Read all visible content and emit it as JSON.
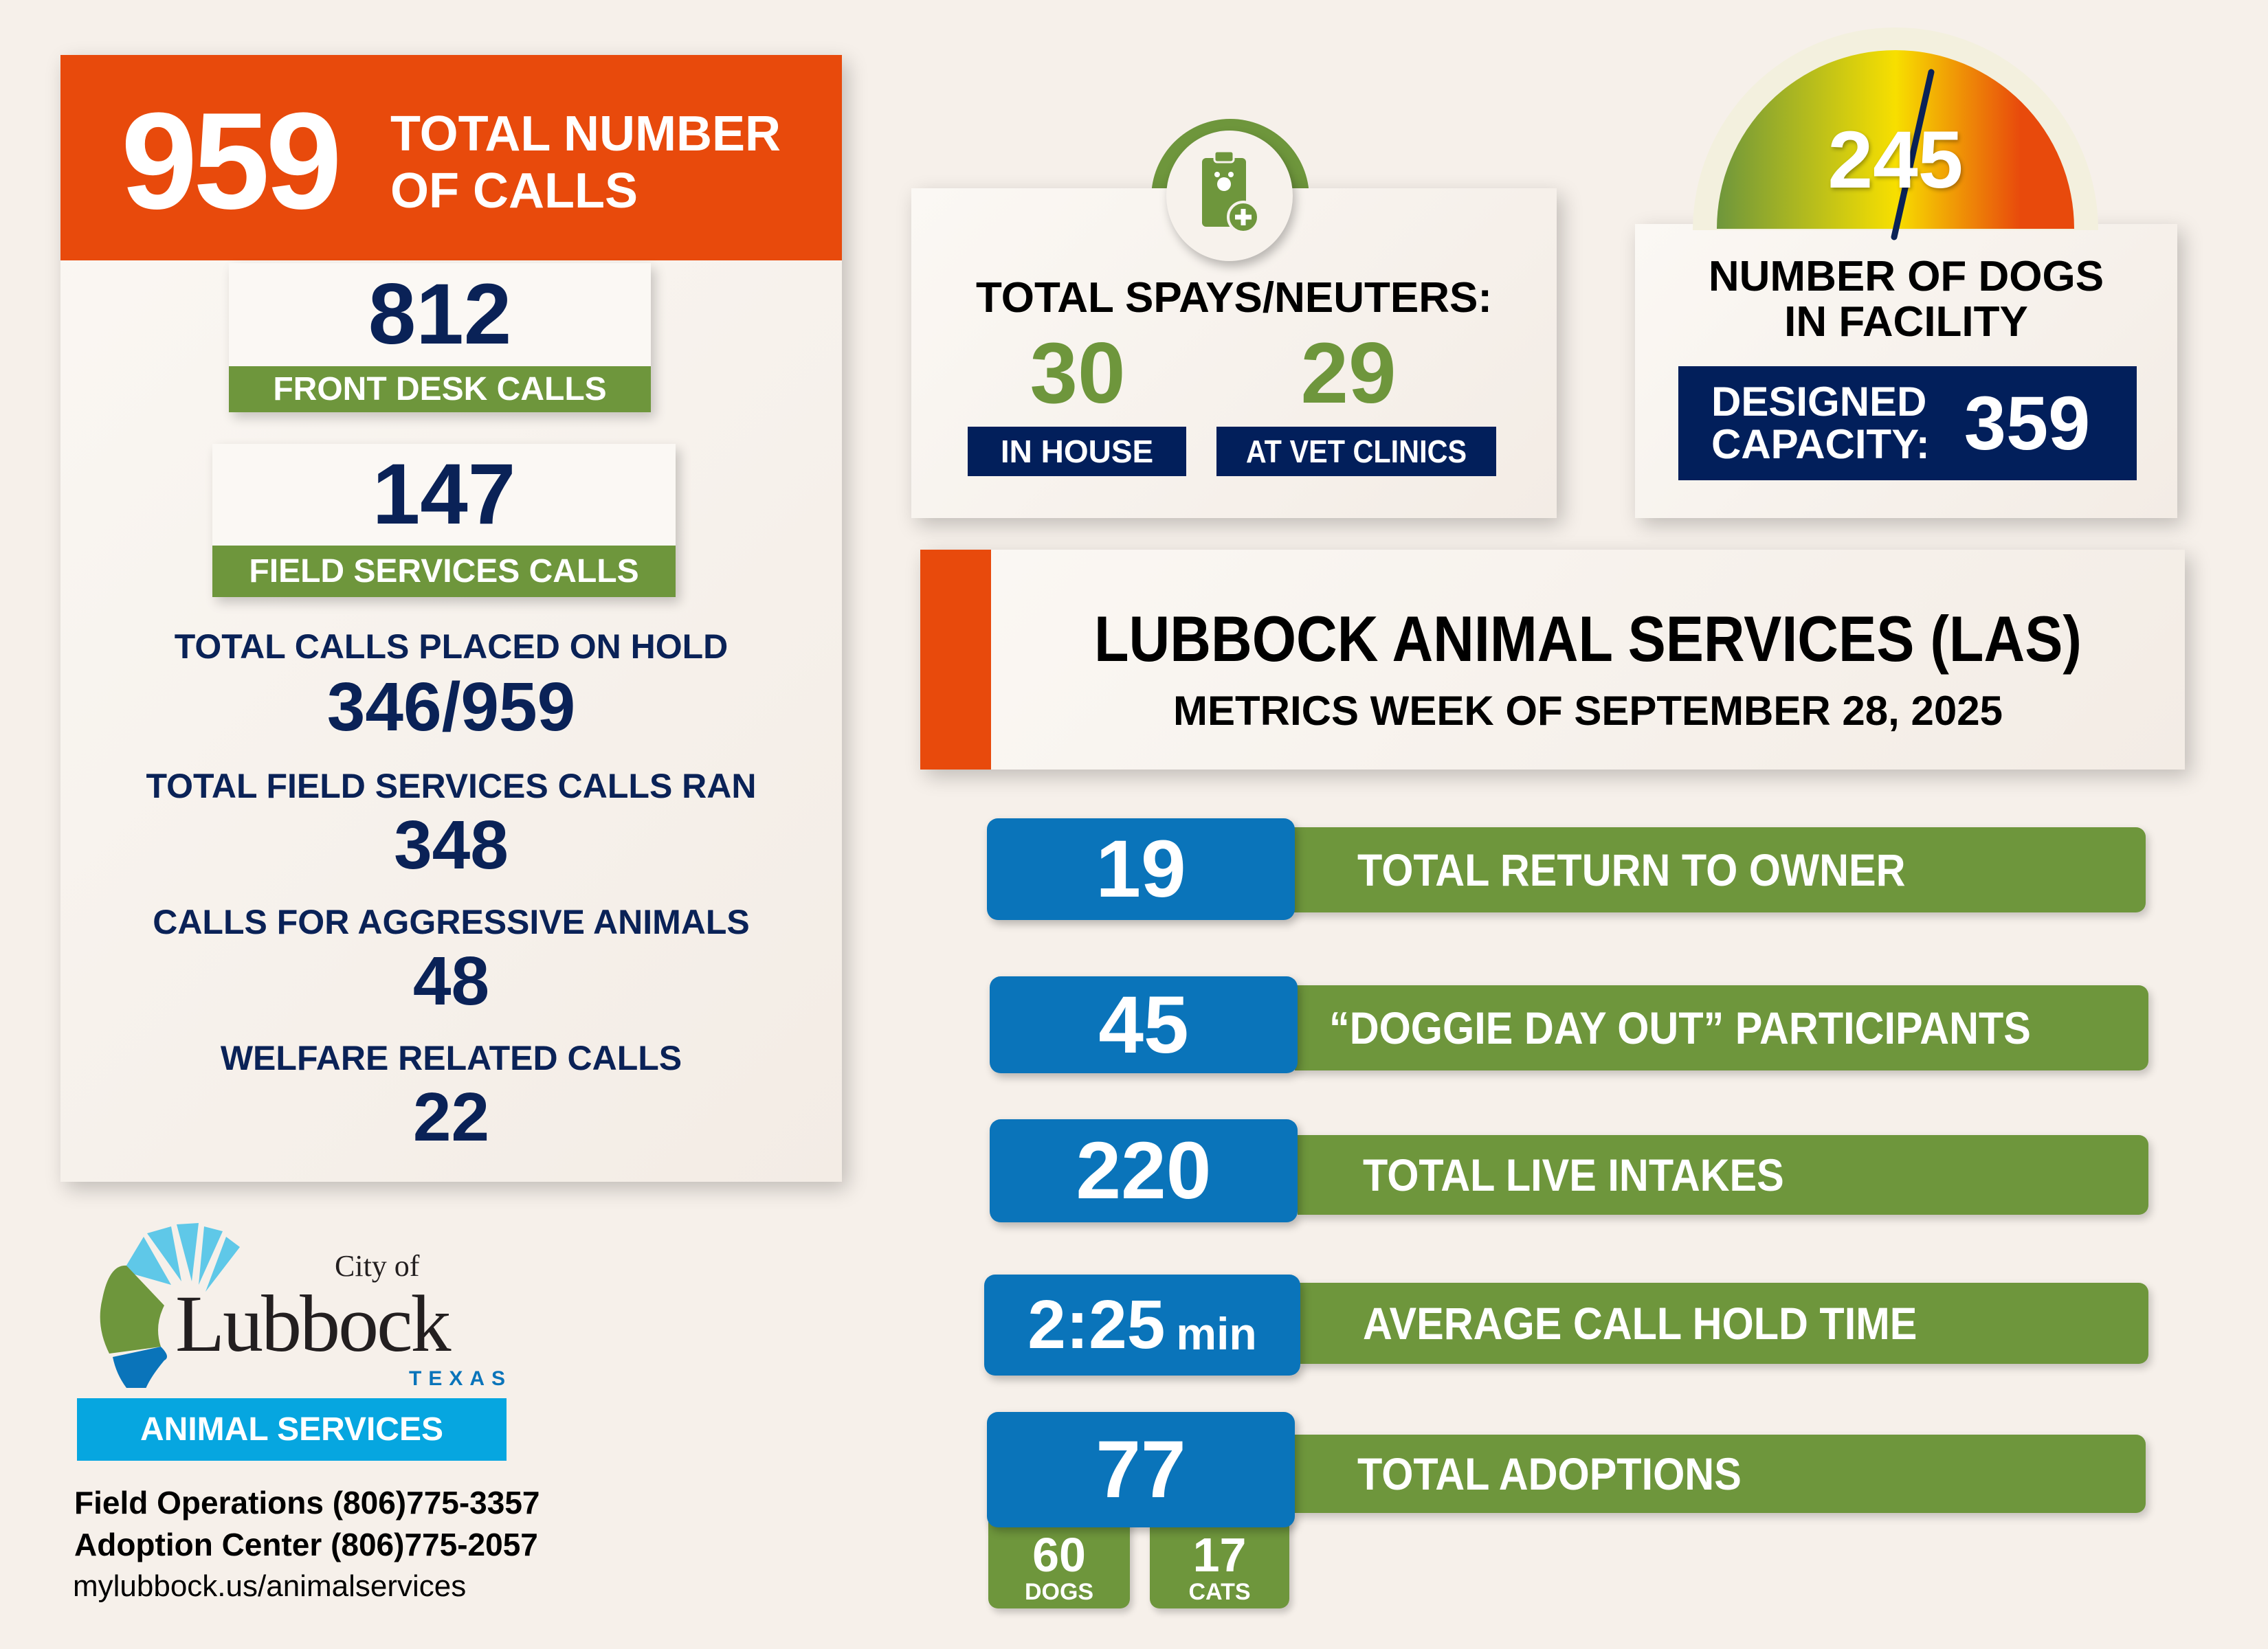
{
  "total_calls": {
    "value": "959",
    "label_line1": "TOTAL NUMBER",
    "label_line2": "OF CALLS"
  },
  "front_desk": {
    "value": "812",
    "label": "FRONT DESK CALLS"
  },
  "field_services": {
    "value": "147",
    "label": "FIELD SERVICES CALLS"
  },
  "left_stats": [
    {
      "label": "TOTAL CALLS PLACED ON HOLD",
      "value": "346/959"
    },
    {
      "label": "TOTAL FIELD SERVICES CALLS RAN",
      "value": "348"
    },
    {
      "label": "CALLS FOR AGGRESSIVE ANIMALS",
      "value": "48"
    },
    {
      "label": "WELFARE RELATED CALLS",
      "value": "22"
    }
  ],
  "spays": {
    "title": "TOTAL SPAYS/NEUTERS:",
    "in_house": {
      "value": "30",
      "label": "IN HOUSE"
    },
    "vet": {
      "value": "29",
      "label": "AT VET CLINICS"
    },
    "icon": "clipboard-paw-plus-icon"
  },
  "dogs": {
    "value": "245",
    "label_line1": "NUMBER OF DOGS",
    "label_line2": "IN FACILITY",
    "capacity_label1": "DESIGNED",
    "capacity_label2": "CAPACITY:",
    "capacity": "359",
    "gauge_fraction": 0.68
  },
  "title": {
    "main": "LUBBOCK ANIMAL SERVICES (LAS)",
    "sub": "METRICS WEEK OF SEPTEMBER 28, 2025"
  },
  "metrics": [
    {
      "value": "19",
      "label": "TOTAL RETURN TO OWNER"
    },
    {
      "value": "45",
      "label": "“DOGGIE DAY OUT” PARTICIPANTS"
    },
    {
      "value": "220",
      "label": "TOTAL LIVE INTAKES"
    },
    {
      "value": "2:25",
      "unit": "min",
      "label": "AVERAGE CALL HOLD TIME"
    },
    {
      "value": "77",
      "label": "TOTAL ADOPTIONS"
    }
  ],
  "adoptions_split": {
    "dogs": {
      "value": "60",
      "label": "DOGS"
    },
    "cats": {
      "value": "17",
      "label": "CATS"
    }
  },
  "logo": {
    "city_of": "City of",
    "name": "Lubbock",
    "state": "TEXAS",
    "department": "ANIMAL SERVICES"
  },
  "contact": {
    "field_ops": "Field Operations (806)775-3357",
    "adoption": "Adoption Center (806)775-2057",
    "website": "mylubbock.us/animalservices"
  },
  "colors": {
    "orange": "#E84A0C",
    "navy": "#0A2257",
    "green": "#6E963C",
    "blue": "#0A74BA",
    "light_blue": "#06A6E0"
  }
}
